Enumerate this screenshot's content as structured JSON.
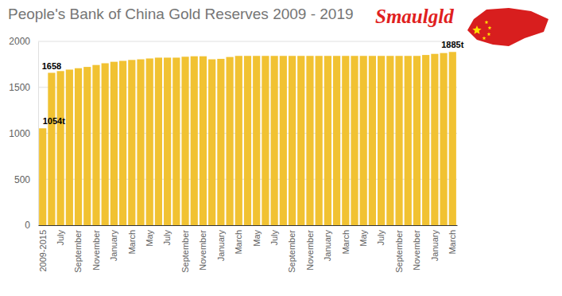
{
  "chart_data": {
    "type": "bar",
    "title": "People's Bank of China Gold Reserves 2009 - 2019",
    "annotations": [
      "Smaulgld"
    ],
    "categories": [
      "2009-2015",
      null,
      "July",
      null,
      "September",
      null,
      "November",
      null,
      "January",
      null,
      "March",
      null,
      "May",
      null,
      "July",
      null,
      "September",
      null,
      "November",
      null,
      "January",
      null,
      "March",
      null,
      "May",
      null,
      "July",
      null,
      "September",
      null,
      "November",
      null,
      "January",
      null,
      "March",
      null,
      "May",
      null,
      "July",
      null,
      "September",
      null,
      "November",
      null,
      "January",
      null,
      "March"
    ],
    "values": [
      1054,
      1658,
      1677,
      1693,
      1708,
      1722,
      1743,
      1762,
      1778,
      1788,
      1798,
      1805,
      1814,
      1823,
      1823,
      1823,
      1833,
      1838,
      1838,
      1805,
      1810,
      1830,
      1842,
      1842,
      1842,
      1842,
      1842,
      1842,
      1842,
      1842,
      1842,
      1842,
      1842,
      1842,
      1842,
      1842,
      1842,
      1842,
      1842,
      1842,
      1842,
      1842,
      1842,
      1852,
      1864,
      1873,
      1885
    ],
    "value_labels": [
      "1054t",
      "1658",
      null,
      null,
      null,
      null,
      null,
      null,
      null,
      null,
      null,
      null,
      null,
      null,
      null,
      null,
      null,
      null,
      null,
      null,
      null,
      null,
      null,
      null,
      null,
      null,
      null,
      null,
      null,
      null,
      null,
      null,
      null,
      null,
      null,
      null,
      null,
      null,
      null,
      null,
      null,
      null,
      null,
      null,
      null,
      null,
      "1885t"
    ],
    "data_labels": true,
    "color": "#f1c232",
    "ylim": [
      0,
      2000
    ],
    "yticks": [
      0,
      500,
      1000,
      1500,
      2000
    ],
    "grid": true
  }
}
